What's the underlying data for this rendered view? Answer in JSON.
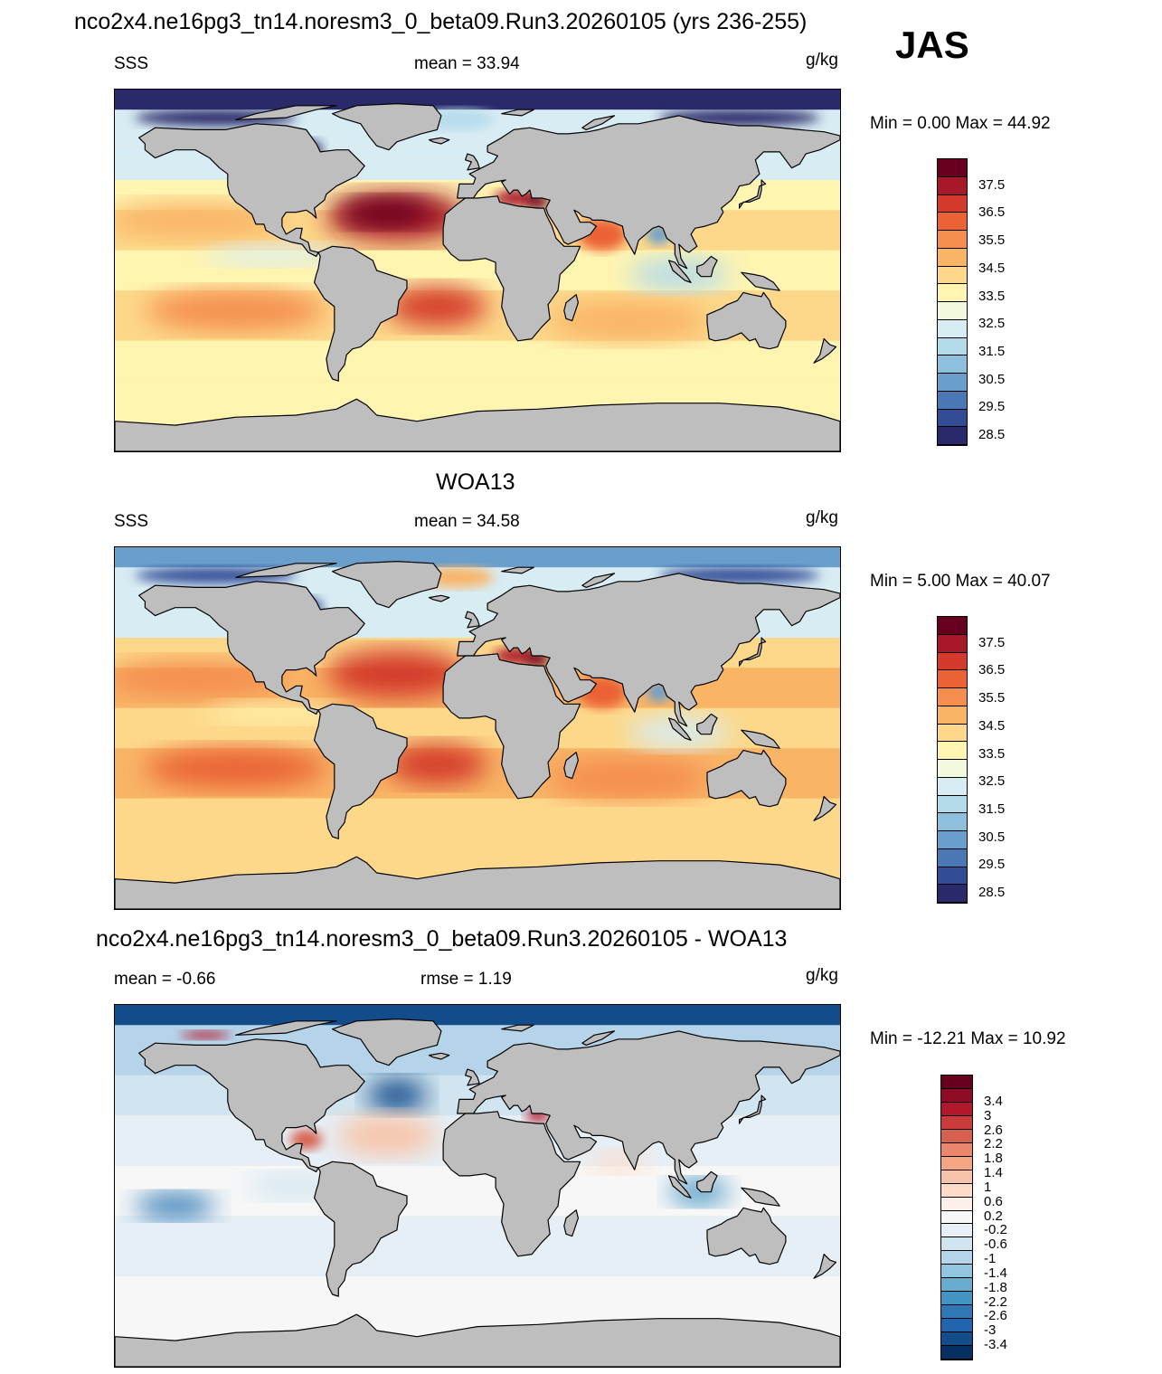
{
  "title": "nco2x4.ne16pg3_tn14.noresm3_0_beta09.Run3.20260105 (yrs 236-255)",
  "season": "JAS",
  "panels": [
    {
      "heading": "",
      "left": "SSS",
      "center": "mean =  33.94",
      "units": "g/kg",
      "minmax": "Min =   0.00 Max =  44.92",
      "kind": "model"
    },
    {
      "heading": "WOA13",
      "left": "SSS",
      "center": "mean =  34.58",
      "units": "g/kg",
      "minmax": "Min =   5.00 Max =  40.07",
      "kind": "obs"
    },
    {
      "heading": "nco2x4.ne16pg3_tn14.noresm3_0_beta09.Run3.20260105 - WOA13",
      "left": "mean =  -0.66",
      "center": "rmse =   1.19",
      "units": "g/kg",
      "minmax": "Min = -12.21 Max =  10.92",
      "kind": "diff"
    }
  ],
  "colorbar_sss": {
    "labels": [
      "37.5",
      "36.5",
      "35.5",
      "34.5",
      "33.5",
      "32.5",
      "31.5",
      "30.5",
      "29.5",
      "28.5"
    ],
    "colors": [
      "#67001f",
      "#a8182b",
      "#d33a2b",
      "#ea6235",
      "#f48d4d",
      "#f9b466",
      "#fdd88a",
      "#fff4b0",
      "#f3f9dc",
      "#d8ecf3",
      "#b5dbeb",
      "#8ebfdc",
      "#6a9fcc",
      "#4a78b5",
      "#324d96",
      "#2a2a6a"
    ]
  },
  "colorbar_diff": {
    "labels": [
      "3.4",
      "3",
      "2.6",
      "2.2",
      "1.8",
      "1.4",
      "1",
      "0.6",
      "0.2",
      "-0.2",
      "-0.6",
      "-1",
      "-1.4",
      "-1.8",
      "-2.2",
      "-2.6",
      "-3",
      "-3.4"
    ],
    "colors": [
      "#67001f",
      "#8e0c25",
      "#b2182b",
      "#c93c3c",
      "#d6604d",
      "#e8876b",
      "#f4a582",
      "#f8c4a9",
      "#fddbc7",
      "#fdf0e8",
      "#f7f7f7",
      "#e6eff6",
      "#d1e5f0",
      "#b5d4e9",
      "#92c5de",
      "#6aacd0",
      "#4393c3",
      "#2f78b5",
      "#2166ac",
      "#134c8a",
      "#053061"
    ]
  },
  "colors": {
    "land": "#bebebe"
  }
}
